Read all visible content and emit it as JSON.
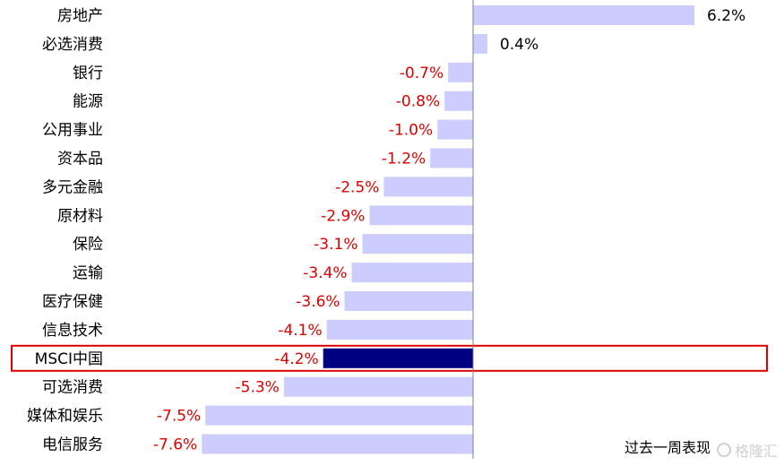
{
  "chart_data": {
    "type": "bar",
    "orientation": "horizontal",
    "categories": [
      "房地产",
      "必选消费",
      "银行",
      "能源",
      "公用事业",
      "资本品",
      "多元金融",
      "原材料",
      "保险",
      "运输",
      "医疗保健",
      "信息技术",
      "MSCI中国",
      "可选消费",
      "媒体和娱乐",
      "电信服务"
    ],
    "values": [
      6.2,
      0.4,
      -0.7,
      -0.8,
      -1.0,
      -1.2,
      -2.5,
      -2.9,
      -3.1,
      -3.4,
      -3.6,
      -4.1,
      -4.2,
      -5.3,
      -7.5,
      -7.6
    ],
    "value_labels": [
      "6.2%",
      "0.4%",
      "-0.7%",
      "-0.8%",
      "-1.0%",
      "-1.2%",
      "-2.5%",
      "-2.9%",
      "-3.1%",
      "-3.4%",
      "-3.6%",
      "-4.1%",
      "-4.2%",
      "-5.3%",
      "-7.5%",
      "-7.6%"
    ],
    "highlight_index": 12,
    "xlim": [
      -8.1,
      8.6
    ],
    "grid": false,
    "colors": {
      "bar": "#ccccff",
      "highlight_bar": "#000080",
      "positive_label": "#000000",
      "negative_label": "#dd0000",
      "highlight_box": "#dd0000",
      "axis": "#808080"
    },
    "note": "过去一周表现"
  },
  "watermark": "格隆汇"
}
